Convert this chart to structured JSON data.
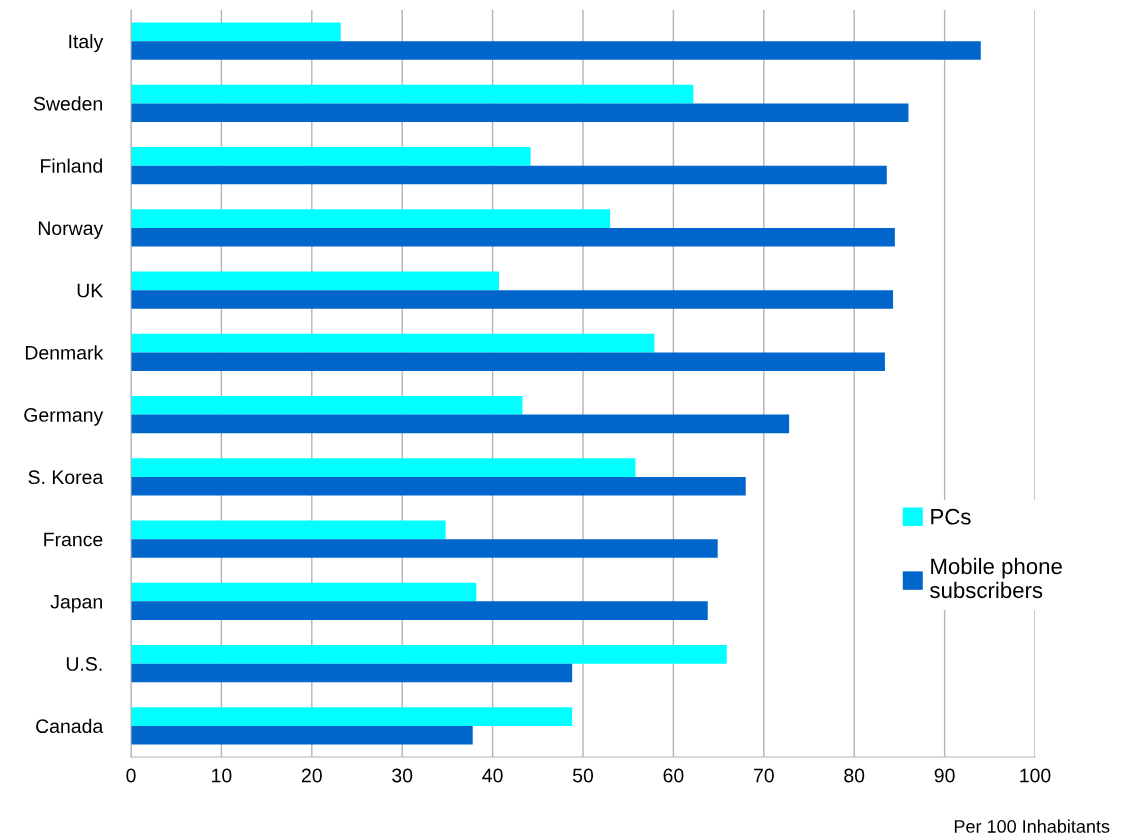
{
  "chart_data": {
    "type": "bar",
    "orientation": "horizontal",
    "xlabel": "Per 100 Inhabitants",
    "categories": [
      "Italy",
      "Sweden",
      "Finland",
      "Norway",
      "UK",
      "Denmark",
      "Germany",
      "S. Korea",
      "France",
      "Japan",
      "U.S.",
      "Canada"
    ],
    "series": [
      {
        "name": "PCs",
        "color": "#00ffff",
        "values": [
          23.2,
          62.2,
          44.2,
          53.0,
          40.7,
          57.9,
          43.3,
          55.8,
          34.8,
          38.2,
          65.9,
          48.8
        ]
      },
      {
        "name": "Mobile phone subscribers",
        "color": "#0066cc",
        "values": [
          94.0,
          86.0,
          83.6,
          84.5,
          84.3,
          83.4,
          72.8,
          68.0,
          64.9,
          63.8,
          48.8,
          37.8
        ]
      }
    ],
    "xlim": [
      0,
      100
    ],
    "xticks": [
      0,
      10,
      20,
      30,
      40,
      50,
      60,
      70,
      80,
      90,
      100
    ],
    "grid": "x",
    "legend": "right"
  }
}
